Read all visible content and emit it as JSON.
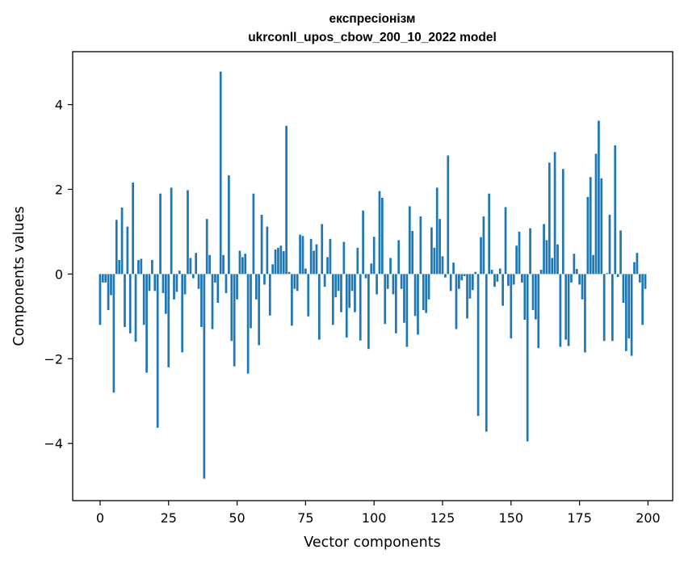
{
  "chart_data": {
    "type": "bar",
    "title": "експресіонізм",
    "subtitle": "ukrconll_upos_cbow_200_10_2022 model",
    "xlabel": "Vector components",
    "ylabel": "Components values",
    "xlim": [
      -10,
      209
    ],
    "ylim": [
      -5.35,
      5.25
    ],
    "xticks": [
      0,
      25,
      50,
      75,
      100,
      125,
      150,
      175,
      200
    ],
    "xtick_labels": [
      "0",
      "25",
      "50",
      "75",
      "100",
      "125",
      "150",
      "175",
      "200"
    ],
    "yticks": [
      -4,
      -2,
      0,
      2,
      4
    ],
    "ytick_labels": [
      "−4",
      "−2",
      "0",
      "2",
      "4"
    ],
    "grid": false,
    "bar_color": "#1f77b4",
    "x": [
      0,
      1,
      2,
      3,
      4,
      5,
      6,
      7,
      8,
      9,
      10,
      11,
      12,
      13,
      14,
      15,
      16,
      17,
      18,
      19,
      20,
      21,
      22,
      23,
      24,
      25,
      26,
      27,
      28,
      29,
      30,
      31,
      32,
      33,
      34,
      35,
      36,
      37,
      38,
      39,
      40,
      41,
      42,
      43,
      44,
      45,
      46,
      47,
      48,
      49,
      50,
      51,
      52,
      53,
      54,
      55,
      56,
      57,
      58,
      59,
      60,
      61,
      62,
      63,
      64,
      65,
      66,
      67,
      68,
      69,
      70,
      71,
      72,
      73,
      74,
      75,
      76,
      77,
      78,
      79,
      80,
      81,
      82,
      83,
      84,
      85,
      86,
      87,
      88,
      89,
      90,
      91,
      92,
      93,
      94,
      95,
      96,
      97,
      98,
      99,
      100,
      101,
      102,
      103,
      104,
      105,
      106,
      107,
      108,
      109,
      110,
      111,
      112,
      113,
      114,
      115,
      116,
      117,
      118,
      119,
      120,
      121,
      122,
      123,
      124,
      125,
      126,
      127,
      128,
      129,
      130,
      131,
      132,
      133,
      134,
      135,
      136,
      137,
      138,
      139,
      140,
      141,
      142,
      143,
      144,
      145,
      146,
      147,
      148,
      149,
      150,
      151,
      152,
      153,
      154,
      155,
      156,
      157,
      158,
      159,
      160,
      161,
      162,
      163,
      164,
      165,
      166,
      167,
      168,
      169,
      170,
      171,
      172,
      173,
      174,
      175,
      176,
      177,
      178,
      179,
      180,
      181,
      182,
      183,
      184,
      185,
      186,
      187,
      188,
      189,
      190,
      191,
      192,
      193,
      194,
      195,
      196,
      197,
      198,
      199
    ],
    "values": [
      -1.2,
      -0.2,
      -0.2,
      -0.85,
      -0.5,
      -2.8,
      1.28,
      0.33,
      1.57,
      -1.25,
      1.12,
      -1.4,
      2.16,
      -1.6,
      0.33,
      0.36,
      -1.2,
      -2.33,
      -0.4,
      0.33,
      -0.4,
      -3.63,
      1.9,
      -0.45,
      -0.94,
      -2.2,
      2.04,
      -0.6,
      -0.42,
      0.08,
      -1.85,
      -0.48,
      1.98,
      0.38,
      -0.1,
      0.5,
      -0.35,
      -1.25,
      -4.83,
      1.3,
      0.45,
      -1.3,
      -0.2,
      -0.68,
      4.78,
      0.45,
      -0.45,
      2.33,
      -1.58,
      -2.18,
      -0.6,
      0.55,
      0.4,
      0.48,
      -2.35,
      -1.28,
      1.9,
      -0.6,
      -1.68,
      1.4,
      -0.25,
      1.12,
      -0.98,
      0.23,
      0.58,
      0.62,
      0.67,
      0.54,
      3.5,
      0.05,
      -1.22,
      -0.35,
      -0.4,
      0.93,
      0.9,
      0.13,
      -1.0,
      0.83,
      0.55,
      0.7,
      -1.55,
      1.18,
      -0.3,
      0.4,
      0.83,
      -1.2,
      -0.55,
      -0.4,
      -0.9,
      0.76,
      -1.5,
      -0.8,
      -0.4,
      -0.9,
      0.62,
      -1.57,
      1.5,
      -0.1,
      -1.77,
      0.25,
      0.88,
      -0.48,
      1.96,
      1.8,
      -1.18,
      -0.35,
      0.38,
      -0.48,
      -1.4,
      0.8,
      -0.35,
      -1.15,
      -1.72,
      1.6,
      1.02,
      -0.99,
      -1.43,
      1.36,
      -0.85,
      -0.92,
      -0.6,
      1.1,
      0.62,
      2.04,
      1.3,
      0.42,
      -0.08,
      2.8,
      -0.4,
      0.27,
      -1.3,
      -0.35,
      -0.15,
      -0.05,
      -1.05,
      -0.58,
      -0.38,
      0.05,
      -3.35,
      0.87,
      1.36,
      -3.72,
      1.9,
      0.1,
      -0.3,
      -0.18,
      0.13,
      -0.75,
      1.58,
      -0.28,
      -1.52,
      -0.25,
      0.67,
      1.0,
      -0.2,
      -1.08,
      -3.95,
      1.08,
      -0.85,
      -1.07,
      -1.75,
      0.1,
      1.18,
      0.8,
      2.63,
      0.38,
      2.88,
      0.7,
      -1.72,
      2.48,
      -1.55,
      -1.7,
      -0.2,
      0.48,
      0.12,
      -0.25,
      -0.6,
      -1.85,
      1.82,
      2.29,
      0.45,
      2.84,
      3.62,
      2.26,
      -1.58,
      0.02,
      1.4,
      -1.58,
      3.04,
      -0.07,
      1.03,
      -0.68,
      -1.82,
      -1.52,
      -1.93,
      0.28,
      0.5,
      -0.2,
      -1.2,
      -0.35
    ]
  }
}
